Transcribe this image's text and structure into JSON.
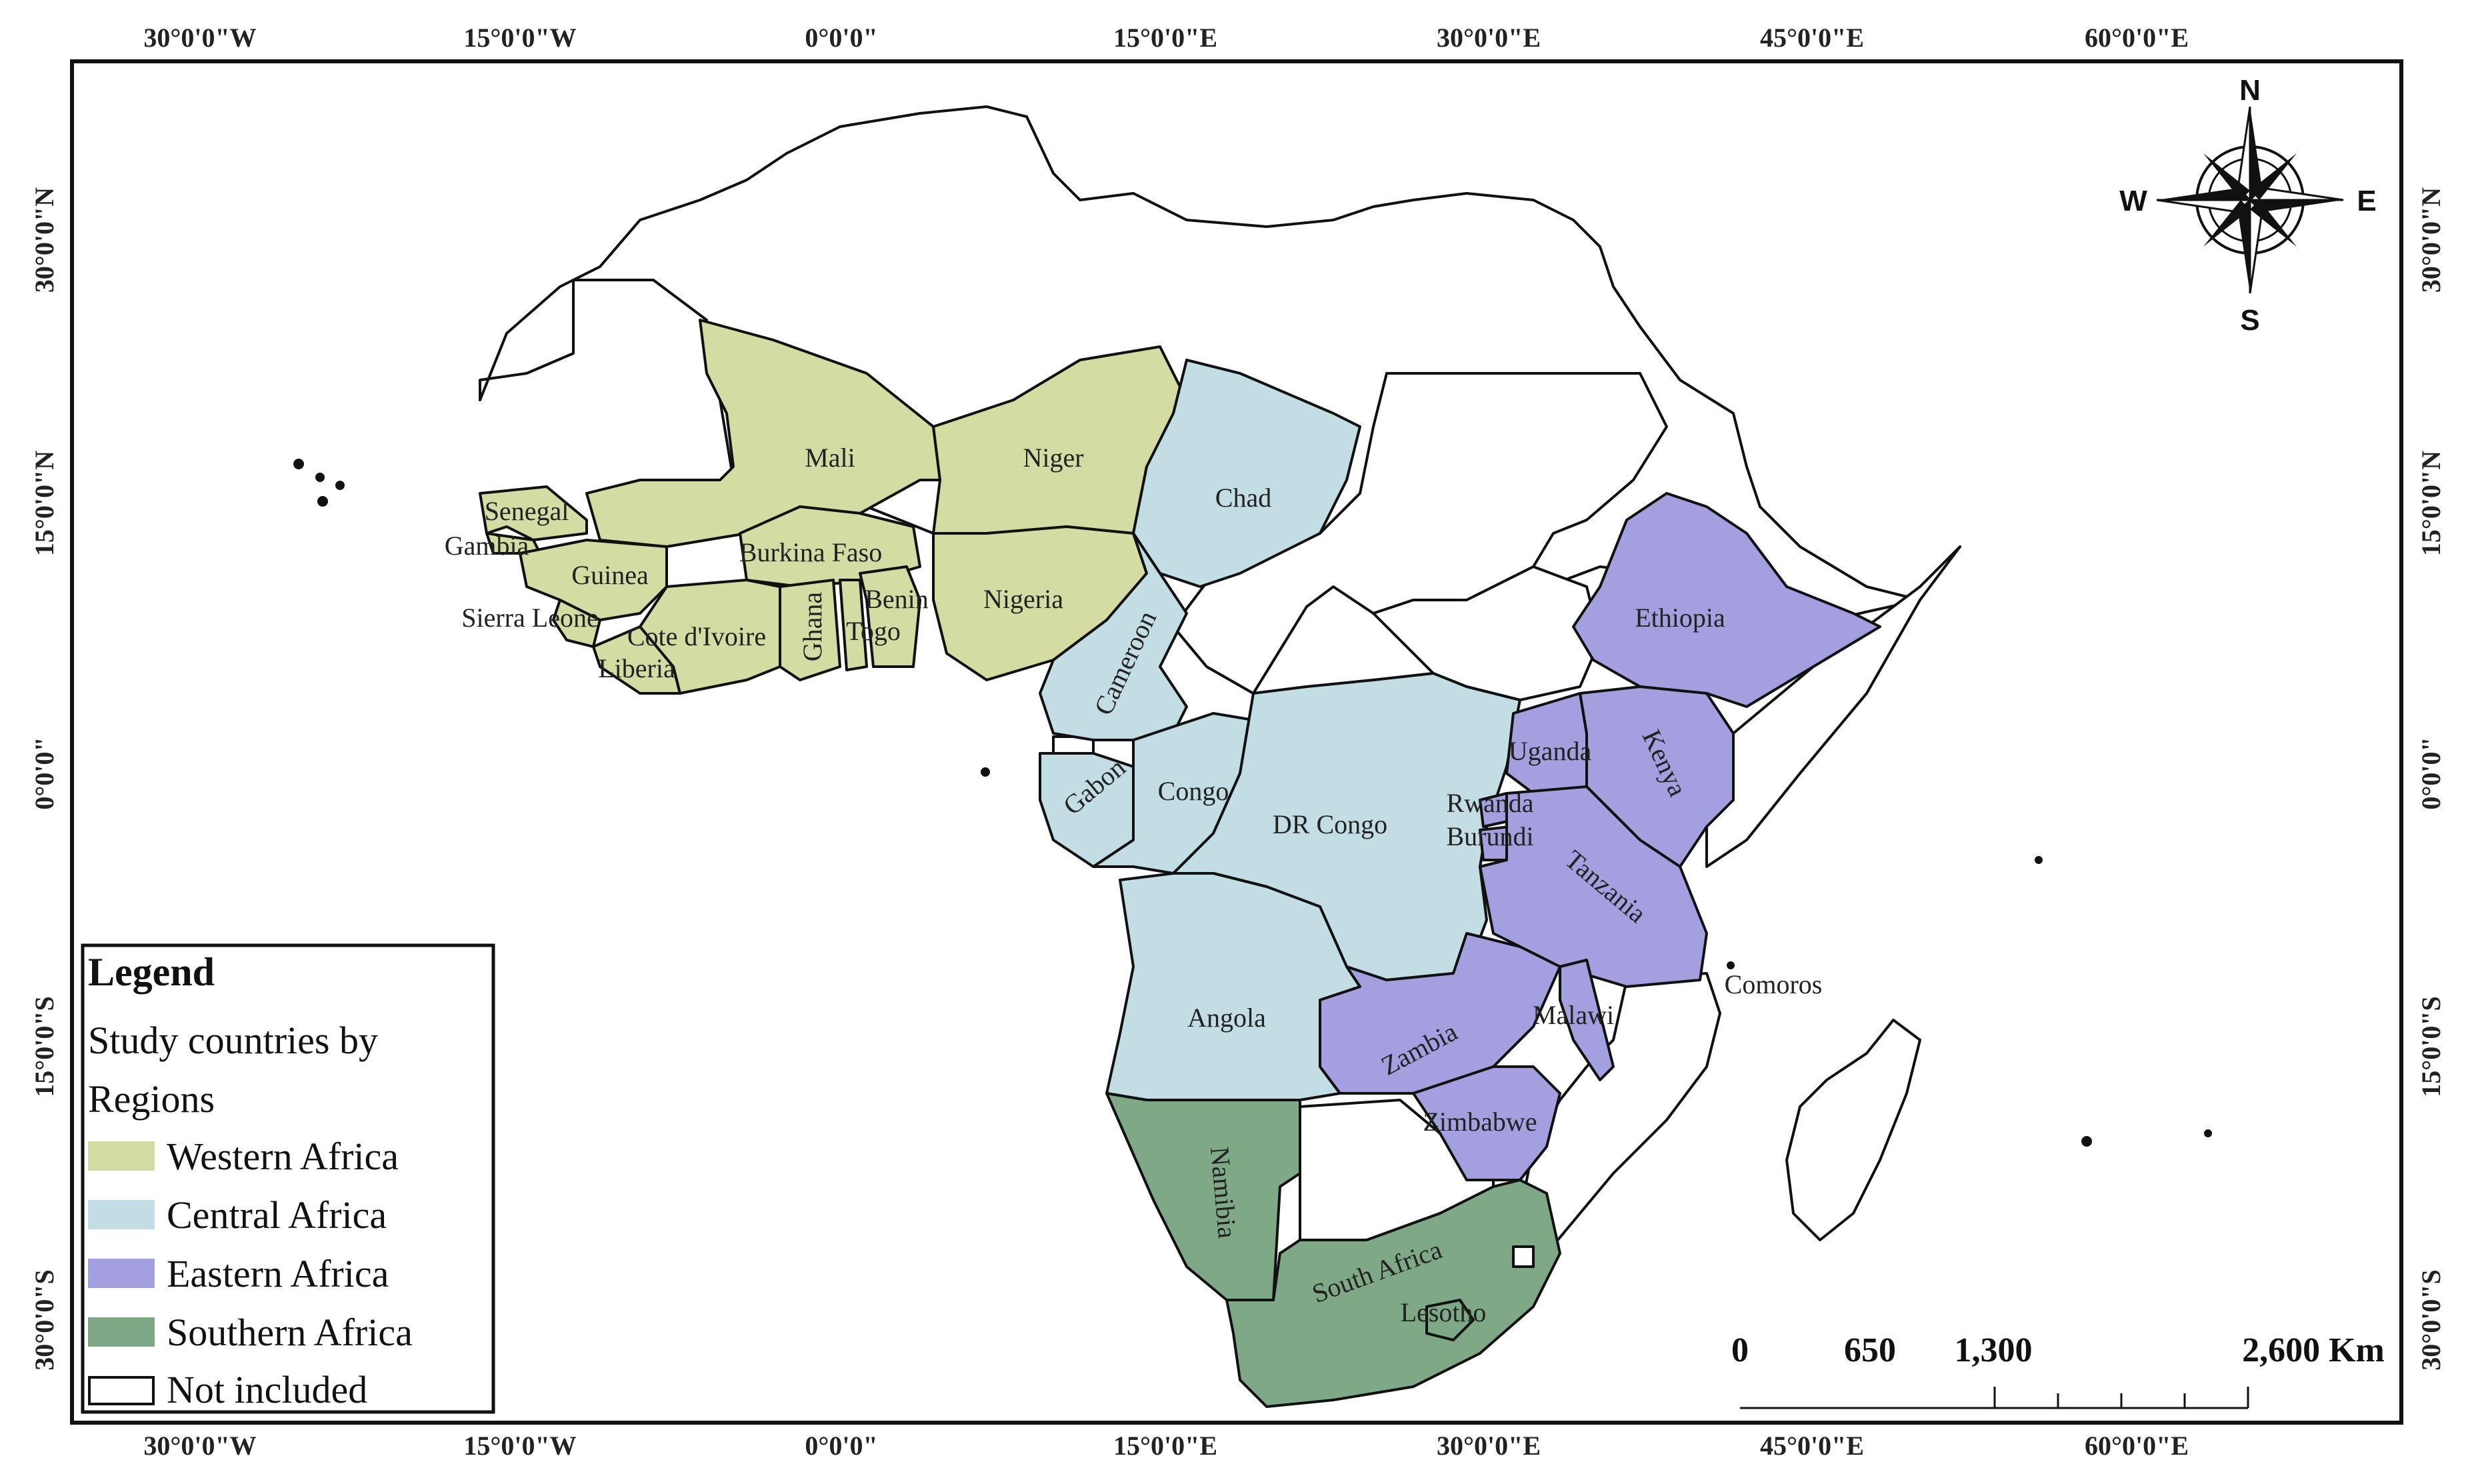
{
  "graticule": {
    "top": [
      "30°0'0\"W",
      "15°0'0\"W",
      "0°0'0\"",
      "15°0'0\"E",
      "30°0'0\"E",
      "45°0'0\"E",
      "60°0'0\"E"
    ],
    "bottom": [
      "30°0'0\"W",
      "15°0'0\"W",
      "0°0'0\"",
      "15°0'0\"E",
      "30°0'0\"E",
      "45°0'0\"E",
      "60°0'0\"E"
    ],
    "left": [
      "30°0'0\"N",
      "15°0'0\"N",
      "0°0'0\"",
      "15°0'0\"S",
      "30°0'0\"S"
    ],
    "right": [
      "30°0'0\"N",
      "15°0'0\"N",
      "0°0'0\"",
      "15°0'0\"S",
      "30°0'0\"S"
    ]
  },
  "colors": {
    "western": "#d4dba3",
    "central": "#c2dde3",
    "eastern": "#a49fdf",
    "southern": "#7fa986",
    "not_included": "#ffffff"
  },
  "labels": {
    "mali": "Mali",
    "niger": "Niger",
    "senegal": "Senegal",
    "gambia": "Gambia",
    "guinea": "Guinea",
    "burkina": "Burkina Faso",
    "benin": "Benin",
    "togo": "Togo",
    "nigeria": "Nigeria",
    "sierra": "Sierra Leone",
    "cote": "Cote d'Ivoire",
    "ghana": "Ghana",
    "liberia": "Liberia",
    "chad": "Chad",
    "cameroon": "Cameroon",
    "gabon": "Gabon",
    "congo": "Congo",
    "drc": "DR Congo",
    "angola": "Angola",
    "ethiopia": "Ethiopia",
    "uganda": "Uganda",
    "kenya": "Kenya",
    "rwanda": "Rwanda",
    "burundi": "Burundi",
    "tanzania": "Tanzania",
    "comoros": "Comoros",
    "malawi": "Malawi",
    "zambia": "Zambia",
    "zimbabwe": "Zimbabwe",
    "namibia": "Namibia",
    "south_africa": "South Africa",
    "lesotho": "Lesotho"
  },
  "legend": {
    "title": "Legend",
    "subtitle_1": "Study countries by",
    "subtitle_2": "Regions",
    "items": [
      "Western Africa",
      "Central Africa",
      "Eastern Africa",
      "Southern Africa",
      "Not included"
    ]
  },
  "scale": {
    "ticks": [
      "0",
      "650",
      "1,300",
      "2,600 Km"
    ]
  },
  "compass": {
    "n": "N",
    "s": "S",
    "e": "E",
    "w": "W"
  }
}
